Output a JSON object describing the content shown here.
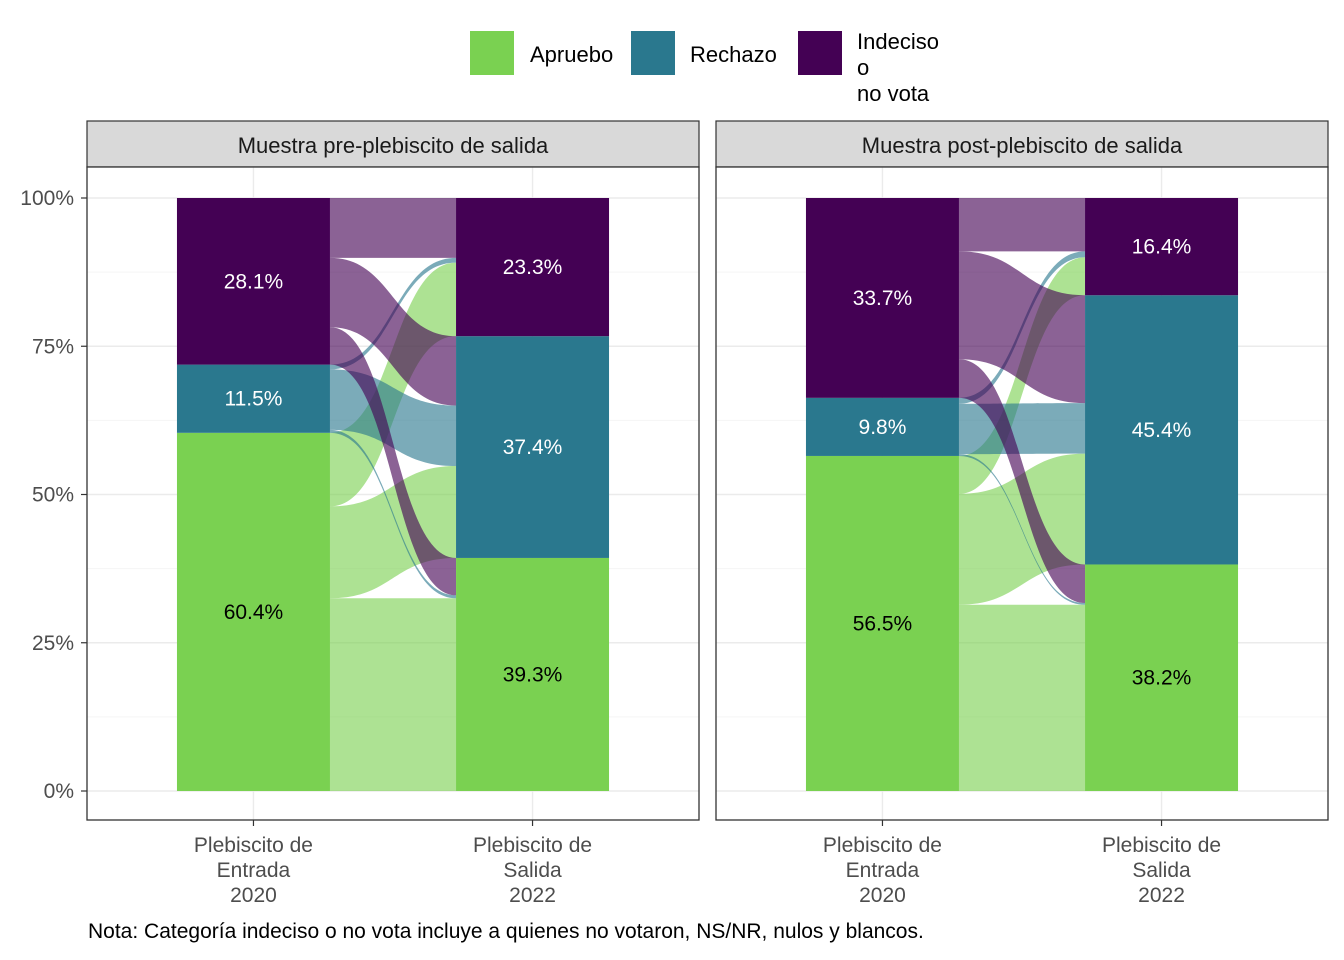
{
  "legend": {
    "items": [
      {
        "key": "apruebo",
        "label": "Apruebo",
        "color": "#7AD151"
      },
      {
        "key": "rechazo",
        "label": "Rechazo",
        "color": "#2A788E"
      },
      {
        "key": "indeciso",
        "label": "Indeciso o\nno vota",
        "color": "#440154"
      }
    ]
  },
  "note": "Nota: Categoría indeciso o no vota incluye a quienes no votaron, NS/NR, nulos y blancos.",
  "chart_data": {
    "type": "alluvial",
    "y_ticks": [
      "0%",
      "25%",
      "50%",
      "75%",
      "100%"
    ],
    "y_tick_values": [
      0,
      25,
      50,
      75,
      100
    ],
    "x_labels": [
      [
        "Plebiscito de",
        "Entrada",
        "2020"
      ],
      [
        "Plebiscito de",
        "Salida",
        "2022"
      ]
    ],
    "categories": [
      "Apruebo",
      "Rechazo",
      "Indeciso o no vota"
    ],
    "panels": [
      {
        "title": "Muestra pre-plebiscito de salida",
        "entrada": {
          "apruebo": 60.4,
          "rechazo": 11.5,
          "indeciso": 28.1
        },
        "salida": {
          "apruebo": 39.3,
          "rechazo": 37.4,
          "indeciso": 23.3
        },
        "labels": {
          "entrada": [
            "60.4%",
            "11.5%",
            "28.1%"
          ],
          "salida": [
            "39.3%",
            "37.4%",
            "23.3%"
          ]
        },
        "flows": [
          {
            "from": "apruebo",
            "to": "apruebo",
            "value": 32.5
          },
          {
            "from": "apruebo",
            "to": "rechazo",
            "value": 15.5
          },
          {
            "from": "apruebo",
            "to": "indeciso",
            "value": 12.4
          },
          {
            "from": "rechazo",
            "to": "apruebo",
            "value": 0.5
          },
          {
            "from": "rechazo",
            "to": "rechazo",
            "value": 10.2
          },
          {
            "from": "rechazo",
            "to": "indeciso",
            "value": 0.8
          },
          {
            "from": "indeciso",
            "to": "apruebo",
            "value": 6.3
          },
          {
            "from": "indeciso",
            "to": "rechazo",
            "value": 11.7
          },
          {
            "from": "indeciso",
            "to": "indeciso",
            "value": 10.1
          }
        ]
      },
      {
        "title": "Muestra post-plebiscito de salida",
        "entrada": {
          "apruebo": 56.5,
          "rechazo": 9.8,
          "indeciso": 33.7
        },
        "salida": {
          "apruebo": 38.2,
          "rechazo": 45.4,
          "indeciso": 16.4
        },
        "labels": {
          "entrada": [
            "56.5%",
            "9.8%",
            "33.7%"
          ],
          "salida": [
            "38.2%",
            "45.4%",
            "16.4%"
          ]
        },
        "flows": [
          {
            "from": "apruebo",
            "to": "apruebo",
            "value": 31.4
          },
          {
            "from": "apruebo",
            "to": "rechazo",
            "value": 18.7
          },
          {
            "from": "apruebo",
            "to": "indeciso",
            "value": 6.4
          },
          {
            "from": "rechazo",
            "to": "apruebo",
            "value": 0.3
          },
          {
            "from": "rechazo",
            "to": "rechazo",
            "value": 8.5
          },
          {
            "from": "rechazo",
            "to": "indeciso",
            "value": 1.0
          },
          {
            "from": "indeciso",
            "to": "apruebo",
            "value": 6.5
          },
          {
            "from": "indeciso",
            "to": "rechazo",
            "value": 18.2
          },
          {
            "from": "indeciso",
            "to": "indeciso",
            "value": 9.0
          }
        ]
      }
    ]
  }
}
